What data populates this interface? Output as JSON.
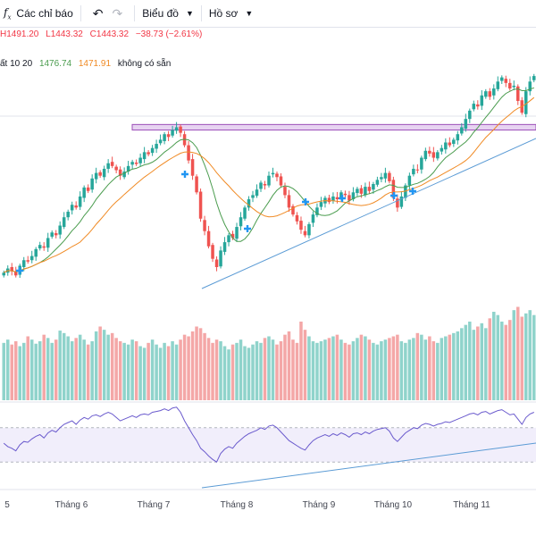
{
  "toolbar": {
    "indicators_label": "Các chỉ báo",
    "chart_type_label": "Biểu đồ",
    "profile_label": "Hồ sơ"
  },
  "legend_price": {
    "high": "H1491.20",
    "low": "L1443.32",
    "close": "C1443.32",
    "change": "−38.73 (−2.61%)"
  },
  "legend_ma": {
    "label": "ất 10 20",
    "ma10": "1476.74",
    "ma20": "1471.91",
    "note": "không có sẵn"
  },
  "colors": {
    "up": "#26a69a",
    "down": "#ef5350",
    "vol_up": "#8fd3cb",
    "vol_down": "#f4a7a7",
    "ma10": "#4a9c4e",
    "ma20": "#f08a24",
    "trend": "#5b9bd5",
    "resistance_fill": "#e7d3f1",
    "resistance_stroke": "#9c4fb8",
    "rsi_line": "#6a5acd",
    "rsi_band": "#f1eefb",
    "marker": "#2196f3"
  },
  "chart_data": {
    "type": "candlestick",
    "x_tick_labels": [
      "5",
      "Tháng 6",
      "Tháng 7",
      "Tháng 8",
      "Tháng 9",
      "Tháng 10",
      "Tháng 11"
    ],
    "price_range": [
      1180,
      1500
    ],
    "resistance_zone": [
      1418,
      1426
    ],
    "closes": [
      1212,
      1218,
      1214,
      1208,
      1222,
      1230,
      1228,
      1236,
      1246,
      1252,
      1248,
      1262,
      1270,
      1266,
      1280,
      1292,
      1300,
      1310,
      1306,
      1322,
      1335,
      1330,
      1348,
      1356,
      1352,
      1362,
      1370,
      1366,
      1360,
      1352,
      1358,
      1366,
      1372,
      1369,
      1378,
      1386,
      1383,
      1392,
      1398,
      1404,
      1412,
      1408,
      1418,
      1422,
      1414,
      1396,
      1374,
      1352,
      1328,
      1290,
      1272,
      1250,
      1232,
      1220,
      1244,
      1256,
      1266,
      1262,
      1278,
      1292,
      1306,
      1318,
      1324,
      1332,
      1342,
      1338,
      1352,
      1356,
      1350,
      1338,
      1324,
      1306,
      1296,
      1286,
      1274,
      1266,
      1282,
      1296,
      1306,
      1314,
      1320,
      1314,
      1322,
      1318,
      1328,
      1324,
      1316,
      1328,
      1333,
      1326,
      1336,
      1330,
      1340,
      1346,
      1350,
      1356,
      1344,
      1320,
      1306,
      1322,
      1338,
      1352,
      1362,
      1360,
      1378,
      1388,
      1384,
      1378,
      1386,
      1392,
      1400,
      1396,
      1404,
      1412,
      1422,
      1434,
      1446,
      1456,
      1452,
      1468,
      1474,
      1466,
      1478,
      1488,
      1494,
      1486,
      1478,
      1482,
      1460,
      1443,
      1474,
      1488,
      1496
    ],
    "volumes": [
      70,
      74,
      68,
      72,
      66,
      70,
      78,
      74,
      69,
      72,
      80,
      76,
      70,
      74,
      85,
      82,
      78,
      72,
      76,
      80,
      74,
      68,
      72,
      84,
      90,
      86,
      80,
      82,
      76,
      72,
      70,
      68,
      74,
      72,
      66,
      64,
      70,
      74,
      68,
      64,
      70,
      66,
      72,
      68,
      74,
      80,
      78,
      84,
      90,
      88,
      82,
      76,
      70,
      74,
      72,
      66,
      62,
      68,
      70,
      74,
      66,
      64,
      68,
      72,
      70,
      76,
      78,
      74,
      68,
      72,
      80,
      84,
      74,
      70,
      96,
      86,
      78,
      72,
      70,
      72,
      74,
      76,
      78,
      80,
      74,
      70,
      68,
      72,
      76,
      80,
      78,
      74,
      70,
      68,
      72,
      74,
      76,
      78,
      80,
      72,
      70,
      74,
      76,
      82,
      80,
      74,
      78,
      72,
      70,
      76,
      78,
      80,
      82,
      84,
      88,
      92,
      96,
      86,
      90,
      94,
      88,
      100,
      108,
      104,
      96,
      92,
      98,
      110,
      114,
      102,
      106,
      110,
      104
    ],
    "rsi": [
      52,
      48,
      46,
      43,
      50,
      54,
      53,
      57,
      60,
      62,
      58,
      64,
      67,
      65,
      70,
      74,
      76,
      78,
      74,
      79,
      82,
      80,
      84,
      85,
      83,
      86,
      88,
      86,
      82,
      78,
      80,
      82,
      84,
      82,
      85,
      86,
      85,
      88,
      89,
      90,
      92,
      90,
      93,
      94,
      88,
      78,
      70,
      62,
      55,
      46,
      42,
      37,
      33,
      30,
      40,
      45,
      48,
      46,
      52,
      56,
      60,
      63,
      65,
      67,
      70,
      68,
      72,
      73,
      70,
      65,
      60,
      55,
      52,
      49,
      46,
      44,
      50,
      55,
      58,
      60,
      62,
      60,
      63,
      61,
      64,
      62,
      59,
      63,
      64,
      62,
      65,
      63,
      66,
      68,
      69,
      70,
      66,
      58,
      54,
      59,
      64,
      67,
      70,
      69,
      73,
      75,
      74,
      72,
      74,
      75,
      77,
      76,
      78,
      80,
      82,
      84,
      86,
      87,
      85,
      88,
      89,
      86,
      88,
      90,
      91,
      88,
      85,
      86,
      80,
      74,
      82,
      86,
      88
    ]
  }
}
